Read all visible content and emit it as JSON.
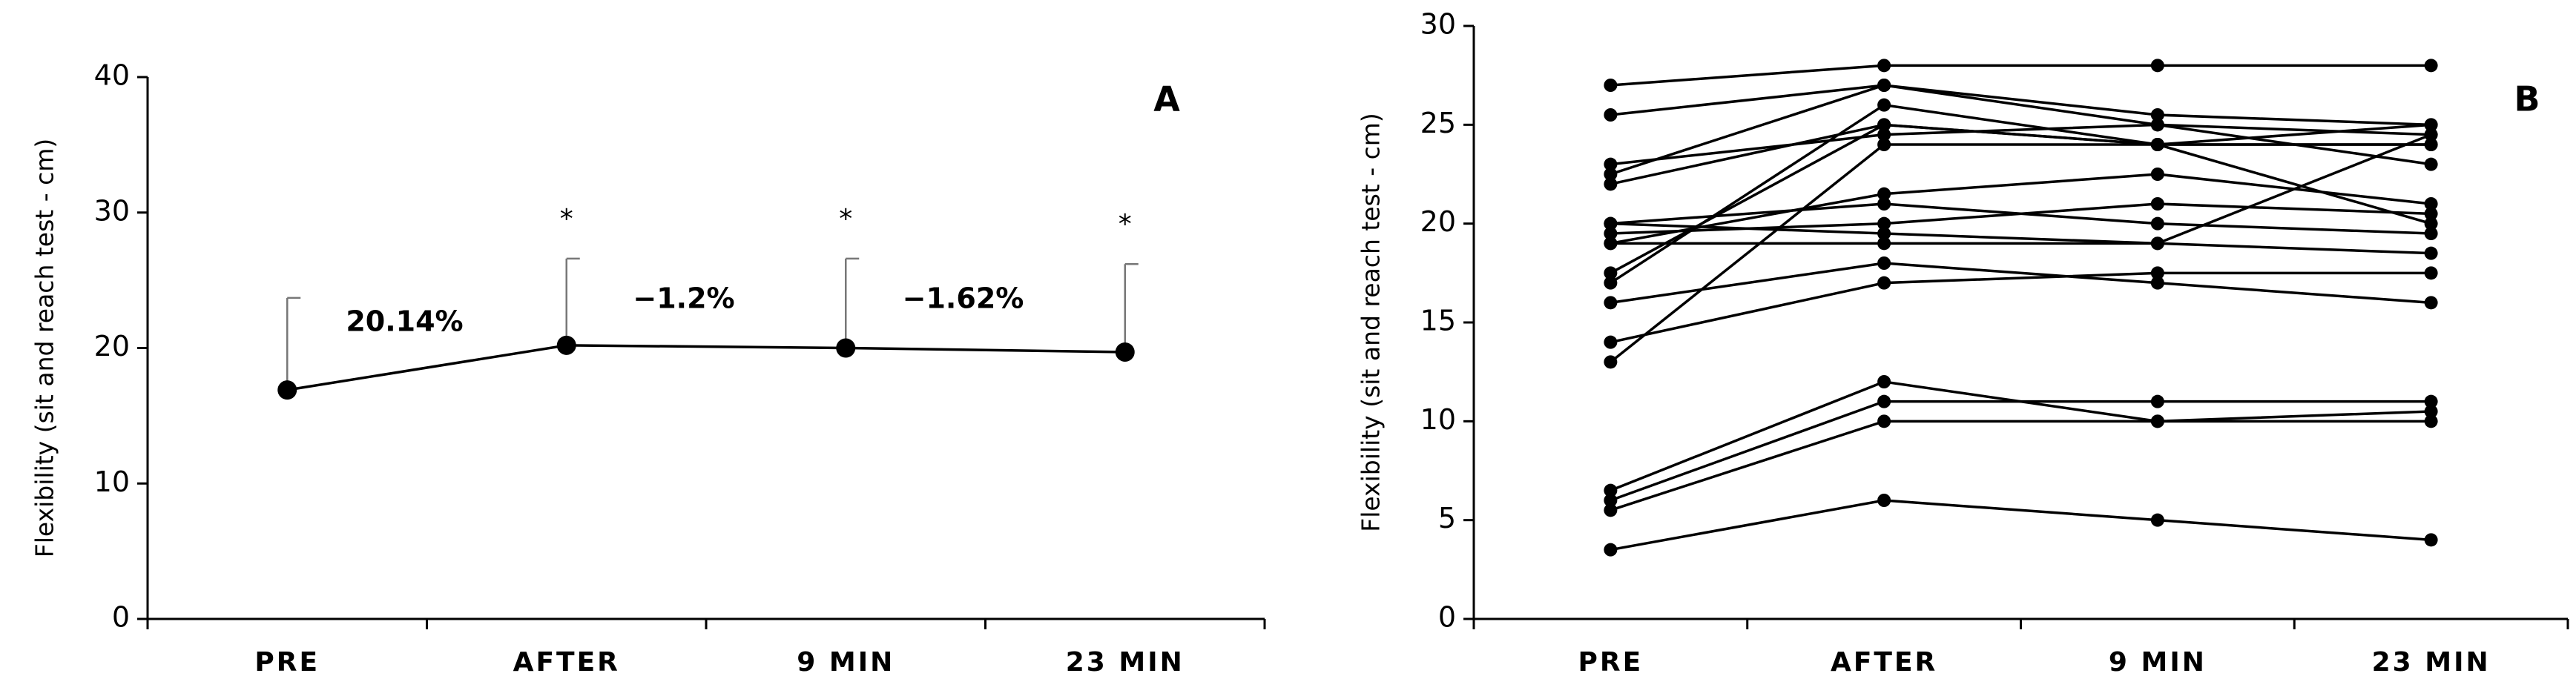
{
  "chart_data": [
    {
      "type": "line",
      "y_label": "Flexibility (sit and reach test - cm)",
      "panel_label": "A",
      "categories": [
        "PRE",
        "AFTER",
        "9 MIN",
        "23 MIN"
      ],
      "values": [
        16.9,
        20.2,
        20.0,
        19.7
      ],
      "errors": [
        6.8,
        6.4,
        6.6,
        6.5
      ],
      "markers": [
        null,
        "*",
        "*",
        "*"
      ],
      "annotations": [
        "20.14%",
        "−1.2%",
        "−1.62%"
      ],
      "color": "#000000",
      "ylim": [
        0,
        40
      ],
      "yticks": [
        0,
        10,
        20,
        30,
        40
      ]
    },
    {
      "type": "line",
      "y_label": "Flexibility (sit and reach test - cm)",
      "panel_label": "B",
      "categories": [
        "PRE",
        "AFTER",
        "9 MIN",
        "23 MIN"
      ],
      "color": "#000000",
      "ylim": [
        0,
        30
      ],
      "yticks": [
        0,
        5,
        10,
        15,
        20,
        25,
        30
      ],
      "series": [
        {
          "values": [
            27,
            28,
            28,
            28
          ]
        },
        {
          "values": [
            25.5,
            27,
            25.5,
            25
          ]
        },
        {
          "values": [
            23,
            24.5,
            25,
            24.5
          ]
        },
        {
          "values": [
            22.5,
            27,
            25,
            23
          ]
        },
        {
          "values": [
            22,
            25,
            24,
            25
          ]
        },
        {
          "values": [
            20,
            21,
            20,
            19.5
          ]
        },
        {
          "values": [
            19.5,
            20,
            21,
            20.5
          ]
        },
        {
          "values": [
            19,
            21.5,
            22.5,
            21
          ]
        },
        {
          "values": [
            19,
            19,
            19,
            24.5
          ]
        },
        {
          "values": [
            17.5,
            25,
            24,
            20
          ]
        },
        {
          "values": [
            17,
            26,
            24,
            24
          ]
        },
        {
          "values": [
            16,
            18,
            17,
            16
          ]
        },
        {
          "values": [
            14,
            17,
            17.5,
            17.5
          ]
        },
        {
          "values": [
            13,
            24,
            24,
            24
          ]
        },
        {
          "values": [
            20,
            19.5,
            19,
            18.5
          ]
        },
        {
          "values": [
            6.5,
            12,
            10,
            10.5
          ]
        },
        {
          "values": [
            6,
            11,
            11,
            11
          ]
        },
        {
          "values": [
            5.5,
            10,
            10,
            10
          ]
        },
        {
          "values": [
            3.5,
            6,
            5,
            4
          ]
        }
      ]
    }
  ]
}
